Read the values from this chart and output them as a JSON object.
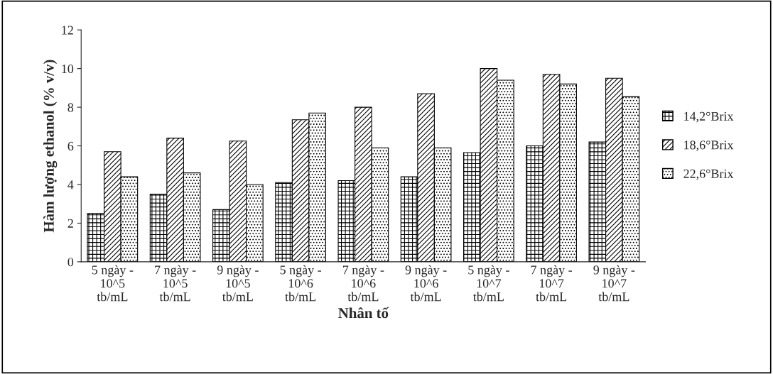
{
  "chart_data": {
    "type": "bar",
    "xlabel": "Nhân tố",
    "ylabel": "Hàm lượng ethanol (% v/v)",
    "categories": [
      "5 ngày -\n10^5\ntb/mL",
      "7 ngày -\n10^5\ntb/mL",
      "9 ngày -\n10^5\ntb/mL",
      "5 ngày -\n10^6\ntb/mL",
      "7 ngày -\n10^6\ntb/mL",
      "9 ngày -\n10^6\ntb/mL",
      "5 ngày -\n10^7\ntb/mL",
      "7 ngày -\n10^7\ntb/mL",
      "9 ngày -\n10^7\ntb/mL"
    ],
    "series": [
      {
        "name": "14,2°Brix",
        "color": "#000000",
        "values": [
          2.5,
          3.5,
          2.7,
          4.1,
          4.2,
          4.4,
          5.65,
          6.0,
          6.2
        ]
      },
      {
        "name": "18,6°Brix",
        "color": "#000000",
        "values": [
          5.7,
          6.4,
          6.25,
          7.35,
          8.0,
          8.7,
          10.0,
          9.7,
          9.5
        ]
      },
      {
        "name": "22,6°Brix",
        "color": "#000000",
        "values": [
          4.4,
          4.6,
          4.0,
          7.7,
          5.9,
          5.9,
          9.4,
          9.2,
          8.55
        ]
      }
    ],
    "ylim": [
      0,
      12
    ],
    "yticks": [
      0,
      2,
      4,
      6,
      8,
      10,
      12
    ],
    "grid": false,
    "legend": "right"
  }
}
